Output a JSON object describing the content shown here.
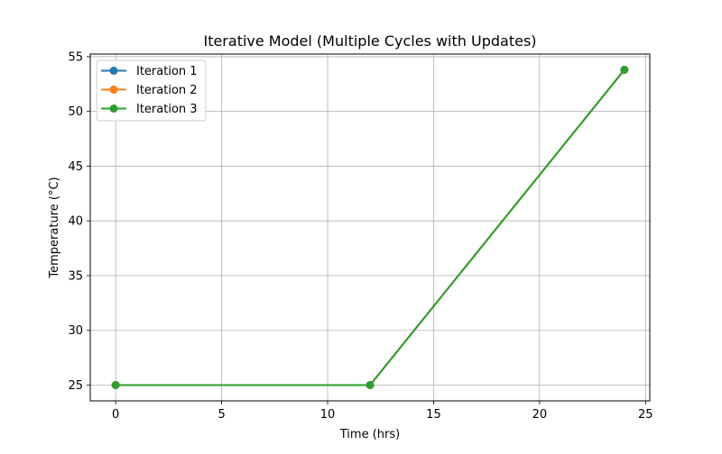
{
  "chart_data": {
    "type": "line",
    "title": "Iterative Model (Multiple Cycles with Updates)",
    "xlabel": "Time (hrs)",
    "ylabel": "Temperature (°C)",
    "x": [
      0,
      12,
      24
    ],
    "series": [
      {
        "name": "Iteration 1",
        "values": [
          25,
          25,
          53.8
        ],
        "color": "#1f77b4"
      },
      {
        "name": "Iteration 2",
        "values": [
          25,
          25,
          53.8
        ],
        "color": "#ff7f0e"
      },
      {
        "name": "Iteration 3",
        "values": [
          25,
          25,
          53.8
        ],
        "color": "#2ca02c"
      }
    ],
    "xlim": [
      -1.2,
      25.2
    ],
    "ylim": [
      23.56,
      55.24
    ],
    "xticks": [
      0,
      5,
      10,
      15,
      20,
      25
    ],
    "yticks": [
      25,
      30,
      35,
      40,
      45,
      50,
      55
    ],
    "grid": true,
    "legend_position": "top-left"
  }
}
